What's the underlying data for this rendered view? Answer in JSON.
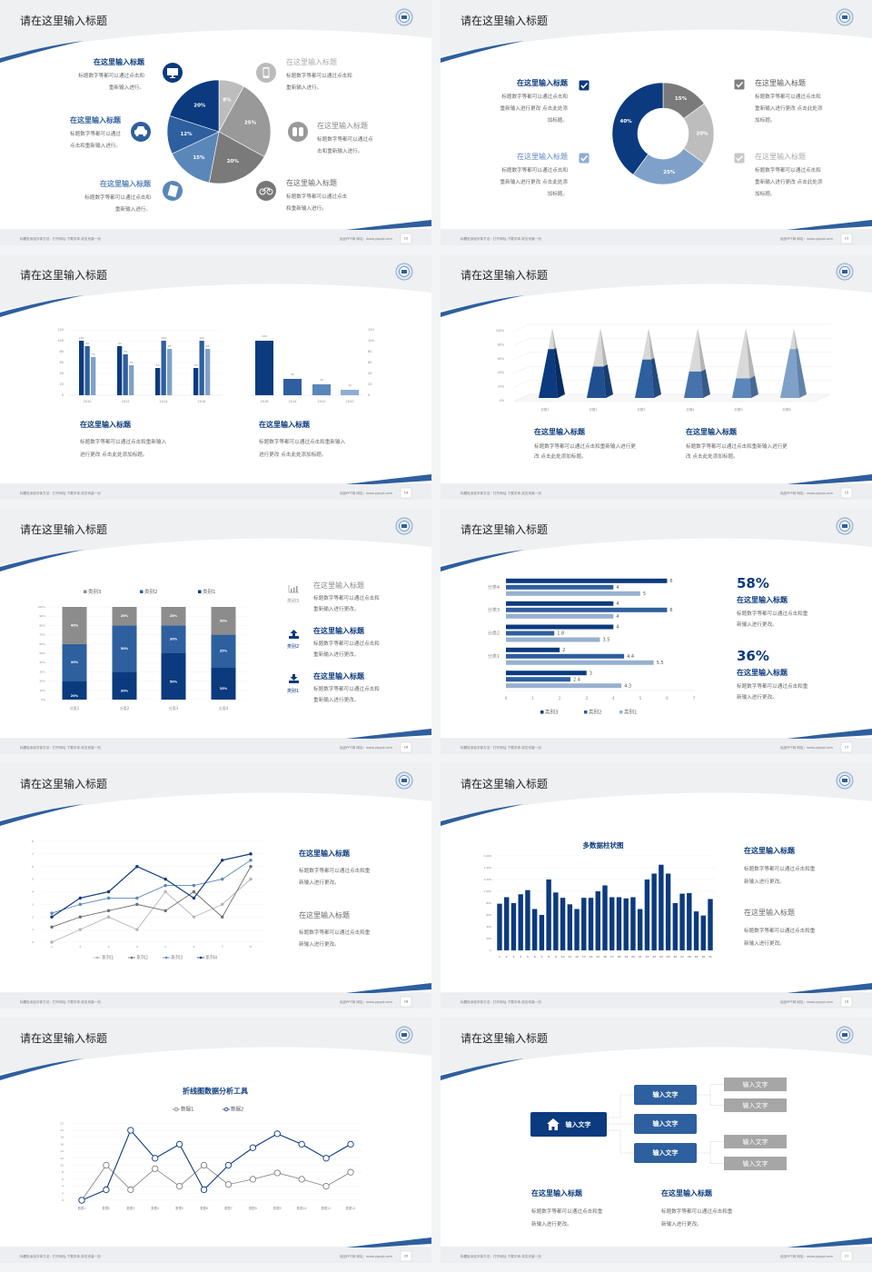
{
  "common": {
    "footer_left": "标题处添加字体方法：打开网址-下载字体-双击安装一页",
    "footer_right": "优品PPT网 网址：www.ypppt.com"
  },
  "colors": {
    "navy": "#0b3a7e",
    "blue": "#2e5f9e",
    "mid_blue": "#5b86ba",
    "light_blue": "#8fadd3",
    "dark_gray": "#7f7f7f",
    "gray": "#a6a6a6",
    "light_gray": "#c4c4c4"
  },
  "slides": [
    {
      "title": "请在这里输入标题",
      "page": "12",
      "blocks": [
        {
          "heading": "在这里输入标题",
          "lines": [
            "标题数字等都可以通过点击和",
            "重新输入进行。"
          ],
          "icon": "monitor-icon"
        },
        {
          "heading": "在这里输入标题",
          "lines": [
            "标题数字等都可以通过",
            "点击和重新输入进行。"
          ],
          "icon": "car-icon"
        },
        {
          "heading": "在这里输入标题",
          "lines": [
            "标题数字等都可以通过点击和",
            "重新输入进行。"
          ],
          "icon": "book-icon"
        },
        {
          "heading": "在这里输入标题",
          "lines": [
            "标题数字等都可以通过点击和",
            "重新输入进行。"
          ],
          "icon": "phone-icon"
        },
        {
          "heading": "在这里输入标题",
          "lines": [
            "标题数字等都可以通过点",
            "击和重新输入进行。"
          ],
          "icon": "binoculars-icon"
        },
        {
          "heading": "在这里输入标题",
          "lines": [
            "标题数字等都可以通过点击",
            "和重新输入进行。"
          ],
          "icon": "bicycle-icon"
        }
      ]
    },
    {
      "title": "请在这里输入标题",
      "page": "13",
      "blocks": [
        {
          "heading": "在这里输入标题",
          "lines": [
            "标题数字等都可以通过点击和",
            "重新输入进行更改 点击此处添",
            "加标题。"
          ],
          "icon": "checkbox-checked-icon"
        },
        {
          "heading": "在这里输入标题",
          "lines": [
            "标题数字等都可以通过点击和",
            "重新输入进行更改 点击此处添",
            "加标题。"
          ],
          "icon": "checkbox-checked-icon"
        },
        {
          "heading": "在这里输入标题",
          "lines": [
            "标题数字等都可以通过点击和",
            "重新输入进行更改 点击此处添",
            "加标题。"
          ],
          "icon": "checkbox-checked-icon"
        },
        {
          "heading": "在这里输入标题",
          "lines": [
            "标题数字等都可以通过点击和",
            "重新输入进行更改 点击此处添",
            "加标题。"
          ],
          "icon": "checkbox-checked-icon"
        }
      ]
    },
    {
      "title": "请在这里输入标题",
      "page": "14",
      "blocks": [
        {
          "heading": "在这里输入标题",
          "lines": [
            "标题数字等都可以通过点击和重新输入",
            "进行更改 点击此处添加标题。"
          ]
        },
        {
          "heading": "在这里输入标题",
          "lines": [
            "标题数字等都可以通过点击和重新输入",
            "进行更改 点击此处添加标题。"
          ]
        }
      ]
    },
    {
      "title": "请在这里输入标题",
      "page": "15",
      "blocks": [
        {
          "heading": "在这里输入标题",
          "lines": [
            "标题数字等都可以通过点击和重新输入进行更",
            "改 点击此处添加标题。"
          ]
        },
        {
          "heading": "在这里输入标题",
          "lines": [
            "标题数字等都可以通过点击和重新输入进行更",
            "改 点击此处添加标题。"
          ]
        }
      ]
    },
    {
      "title": "请在这里输入标题",
      "page": "16",
      "blocks": [
        {
          "heading": "在这里输入标题",
          "lines": [
            "标题数字等都可以通过点击和",
            "重新输入进行更改。"
          ],
          "icon": "bar-chart-icon",
          "icon_label": "类别3"
        },
        {
          "heading": "在这里输入标题",
          "lines": [
            "标题数字等都可以通过点击和",
            "重新输入进行更改。"
          ],
          "icon": "upload-icon",
          "icon_label": "类别2"
        },
        {
          "heading": "在这里输入标题",
          "lines": [
            "标题数字等都可以通过点击和",
            "重新输入进行更改。"
          ],
          "icon": "download-icon",
          "icon_label": "类别1"
        }
      ]
    },
    {
      "title": "请在这里输入标题",
      "page": "17",
      "blocks": [
        {
          "stat": "58%",
          "heading": "在这里输入标题",
          "lines": [
            "标题数字等都可以通过点击和重",
            "新输入进行更改。"
          ]
        },
        {
          "stat": "36%",
          "heading": "在这里输入标题",
          "lines": [
            "标题数字等都可以通过点击和重",
            "新输入进行更改。"
          ]
        }
      ]
    },
    {
      "title": "请在这里输入标题",
      "page": "18",
      "blocks": [
        {
          "heading": "在这里输入标题",
          "lines": [
            "标题数字等都可以通过点击和重",
            "新输入进行更改。"
          ]
        },
        {
          "heading": "在这里输入标题",
          "lines": [
            "标题数字等都可以通过点击和重",
            "新输入进行更改。"
          ]
        }
      ]
    },
    {
      "title": "请在这里输入标题",
      "page": "19",
      "blocks": [
        {
          "heading": "在这里输入标题",
          "lines": [
            "标题数字等都可以通过点击和重",
            "新输入进行更改。"
          ]
        },
        {
          "heading": "在这里输入标题",
          "lines": [
            "标题数字等都可以通过点击和重",
            "新输入进行更改。"
          ]
        }
      ]
    },
    {
      "title": "请在这里输入标题",
      "page": "20",
      "blocks": []
    },
    {
      "title": "请在这里输入标题",
      "page": "21",
      "tree": {
        "root": "输入文字",
        "children": [
          "输入文字",
          "输入文字",
          "输入文字"
        ],
        "leaves": [
          "输入文字",
          "输入文字",
          "输入文字",
          "输入文字"
        ]
      },
      "blocks": [
        {
          "heading": "在这里输入标题",
          "lines": [
            "标题数字等都可以通过点击和重",
            "新输入进行更改。"
          ]
        },
        {
          "heading": "在这里输入标题",
          "lines": [
            "标题数字等都可以通过点击和重",
            "新输入进行更改。"
          ]
        }
      ]
    }
  ],
  "chart_data": [
    {
      "type": "pie",
      "values": [
        8,
        25,
        20,
        15,
        12,
        20
      ],
      "colors": [
        "#bdbdbd",
        "#999999",
        "#7a7a7a",
        "#5b86ba",
        "#2e5f9e",
        "#0b3a7e"
      ]
    },
    {
      "type": "pie",
      "donut": true,
      "values": [
        15,
        20,
        25,
        40
      ],
      "colors": [
        "#7a7a7a",
        "#bdbdbd",
        "#7fa1c9",
        "#0b3a7e"
      ]
    },
    {
      "type": "bar",
      "categories": [
        "2010",
        "2012",
        "2014",
        "2016"
      ],
      "series": [
        {
          "values": [
            100,
            90,
            50,
            50
          ]
        },
        {
          "values": [
            90,
            75,
            100,
            100
          ]
        },
        {
          "values": [
            70,
            55,
            85,
            85
          ]
        }
      ],
      "ylim": [
        0,
        120
      ],
      "yticks": [
        "0",
        "20",
        "40",
        "60",
        "80",
        "100",
        "120"
      ]
    },
    {
      "type": "bar",
      "categories": [
        "2016",
        "2014",
        "2012",
        "2010"
      ],
      "values": [
        100,
        30,
        20,
        10
      ],
      "ylim": [
        0,
        120
      ],
      "yticks": [
        "0",
        "20",
        "40",
        "60",
        "80",
        "100",
        "120"
      ],
      "axis": "right"
    },
    {
      "type": "bar",
      "style": "3d-pyramid",
      "categories": [
        "分类1",
        "分类2",
        "分类3",
        "分类4",
        "分类5",
        "分类6"
      ],
      "values": [
        70,
        45,
        55,
        38,
        28,
        70
      ],
      "ylim": [
        0,
        100
      ],
      "yticks": [
        "0%",
        "20%",
        "40%",
        "60%",
        "80%",
        "100%"
      ]
    },
    {
      "type": "bar",
      "stacked": true,
      "categories": [
        "分类1",
        "分类2",
        "分类3",
        "分类4"
      ],
      "series": [
        {
          "name": "类别1",
          "values": [
            20,
            30,
            50,
            35
          ]
        },
        {
          "name": "类别2",
          "values": [
            40,
            50,
            30,
            35
          ]
        },
        {
          "name": "类别3",
          "values": [
            40,
            20,
            20,
            30
          ]
        }
      ],
      "legend_order": [
        "类别3",
        "类别2",
        "类别1"
      ],
      "ylim": [
        0,
        100
      ],
      "yticks": [
        "0%",
        "10%",
        "20%",
        "30%",
        "40%",
        "50%",
        "60%",
        "70%",
        "80%",
        "90%",
        "100%"
      ],
      "legend": "top"
    },
    {
      "type": "bar",
      "orientation": "horizontal",
      "categories": [
        "分类4",
        "分类3",
        "分类2",
        "分类1",
        ""
      ],
      "series": [
        {
          "name": "类别3",
          "values": [
            6,
            4,
            4,
            2,
            3
          ]
        },
        {
          "name": "类别2",
          "values": [
            4,
            6,
            1.8,
            4.4,
            2.4
          ]
        },
        {
          "name": "类别1",
          "values": [
            5,
            4,
            3.5,
            5.5,
            4.3
          ]
        }
      ],
      "xlim": [
        0,
        7
      ],
      "xticks": [
        "0",
        "1",
        "2",
        "3",
        "4",
        "5",
        "6",
        "7"
      ],
      "legend": "bottom"
    },
    {
      "type": "line",
      "x": [
        1,
        2,
        3,
        4,
        5,
        6,
        7,
        8
      ],
      "series": [
        {
          "name": "系列1",
          "values": [
            0,
            1,
            2,
            1,
            4,
            2,
            3,
            5
          ]
        },
        {
          "name": "系列2",
          "values": [
            1.2,
            2,
            2.5,
            3,
            2.5,
            4,
            2,
            6
          ]
        },
        {
          "name": "系列3",
          "values": [
            2.3,
            3,
            3.5,
            3.5,
            4.5,
            4.5,
            5,
            6.5
          ]
        },
        {
          "name": "系列4",
          "values": [
            2,
            3.5,
            4,
            6,
            5,
            3.5,
            6.5,
            7
          ]
        }
      ],
      "ylim": [
        0,
        8
      ],
      "yticks": [
        "0",
        "1",
        "2",
        "3",
        "4",
        "5",
        "6",
        "7",
        "8"
      ],
      "legend": "bottom"
    },
    {
      "type": "bar",
      "title": "多数据柱状图",
      "values": [
        790,
        900,
        800,
        950,
        1020,
        700,
        600,
        1200,
        980,
        890,
        780,
        700,
        890,
        890,
        1000,
        1100,
        900,
        900,
        880,
        900,
        700,
        1200,
        1300,
        1450,
        1300,
        800,
        960,
        970,
        660,
        590,
        870
      ],
      "ylim": [
        0,
        1600
      ],
      "yticks": [
        "0",
        "200",
        "400",
        "600",
        "800",
        "1,000",
        "1,200",
        "1,400",
        "1,600"
      ]
    },
    {
      "type": "line",
      "title": "折线图数据分析工具",
      "categories": [
        "数据1",
        "数据2",
        "数据3",
        "数据4",
        "数据5",
        "数据6",
        "数据7",
        "数据8",
        "数据9",
        "数据10",
        "数据11",
        "数据12"
      ],
      "series": [
        {
          "name": "数据1",
          "values": [
            0,
            10,
            3,
            9,
            4,
            10,
            4.5,
            6,
            7.8,
            6,
            4,
            8
          ]
        },
        {
          "name": "数据2",
          "values": [
            0,
            3,
            20,
            12,
            16,
            3,
            10,
            15,
            19,
            16,
            12,
            16
          ]
        }
      ],
      "ylim": [
        0,
        22
      ],
      "yticks": [
        "0",
        "2",
        "4",
        "6",
        "8",
        "10",
        "12",
        "14",
        "16",
        "18",
        "20",
        "22"
      ],
      "legend": "top"
    }
  ]
}
